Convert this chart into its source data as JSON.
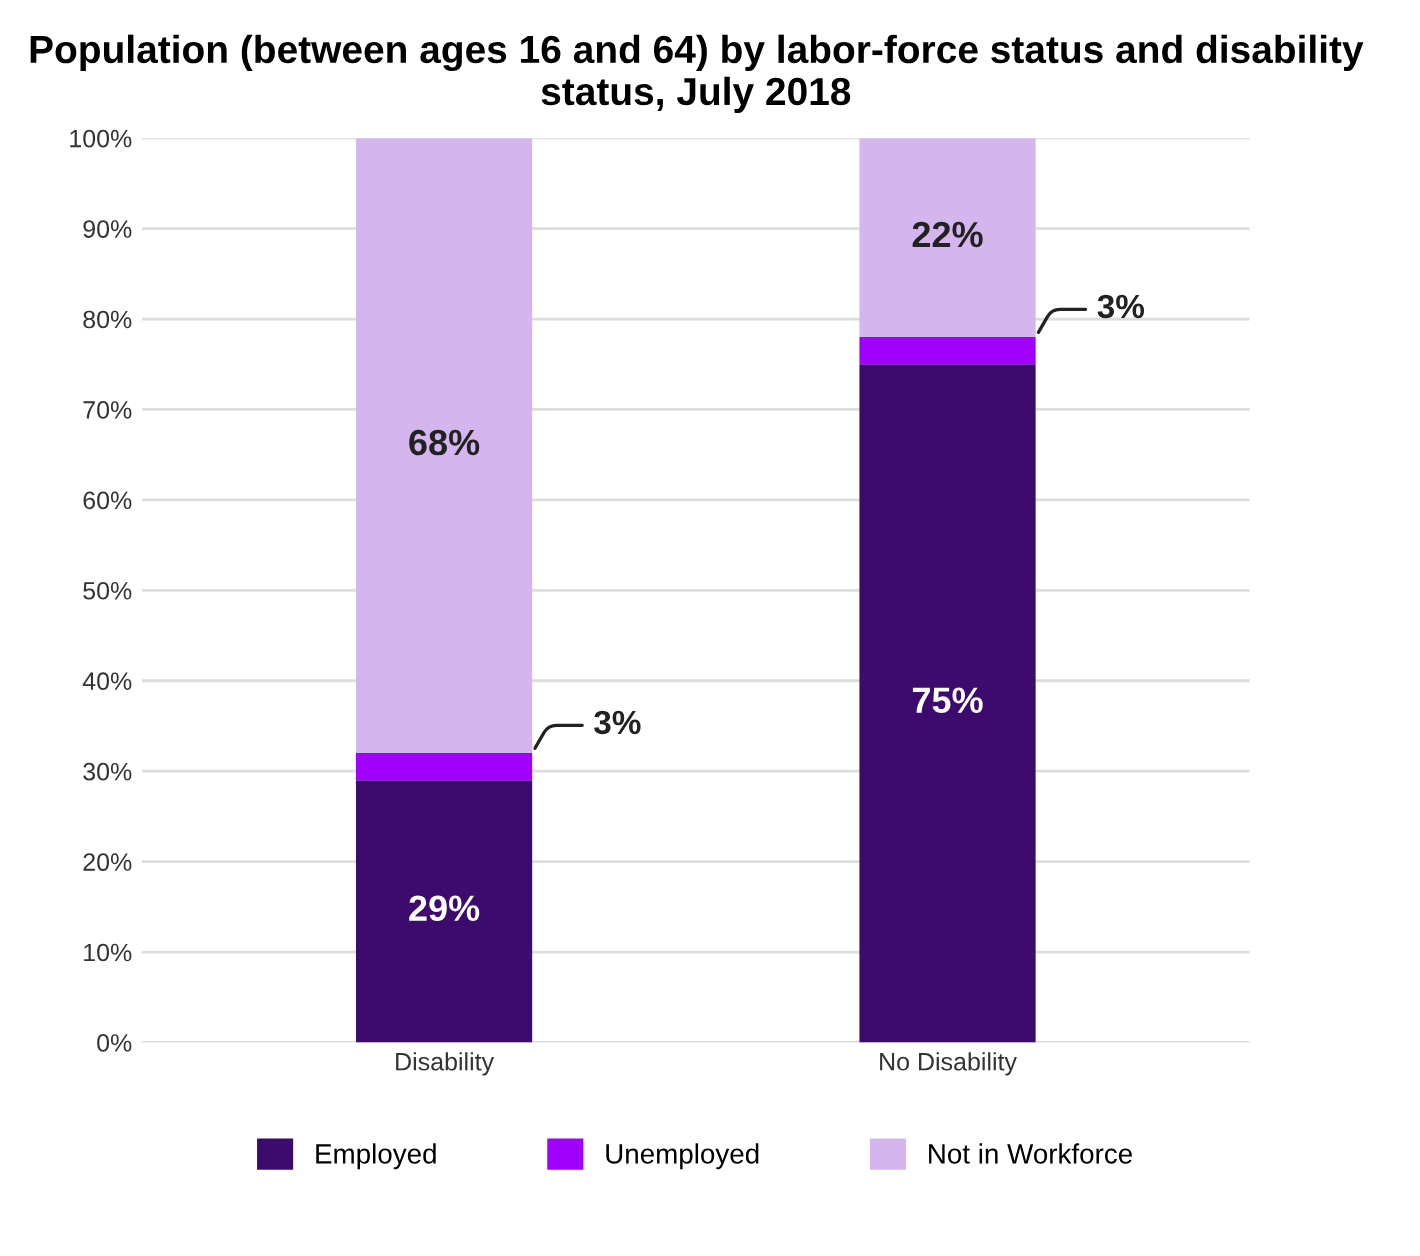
{
  "chart_data": {
    "type": "bar",
    "stacked": true,
    "title": "Population (between ages 16 and 64) by labor-force status and disability status, July 2018",
    "categories": [
      "Disability",
      "No Disability"
    ],
    "series": [
      {
        "name": "Employed",
        "color": "#3d0b6e",
        "values": [
          29,
          75
        ],
        "value_labels": [
          "29%",
          "75%"
        ]
      },
      {
        "name": "Unemployed",
        "color": "#a100ff",
        "values": [
          3,
          3
        ],
        "value_labels": [
          "3%",
          "3%"
        ]
      },
      {
        "name": "Not in Workforce",
        "color": "#d4b5ee",
        "values": [
          68,
          22
        ],
        "value_labels": [
          "68%",
          "22%"
        ]
      }
    ],
    "ylim": [
      0,
      100
    ],
    "yticks": [
      {
        "value": 0,
        "label": "0%"
      },
      {
        "value": 10,
        "label": "10%"
      },
      {
        "value": 20,
        "label": "20%"
      },
      {
        "value": 30,
        "label": "30%"
      },
      {
        "value": 40,
        "label": "40%"
      },
      {
        "value": 50,
        "label": "50%"
      },
      {
        "value": 60,
        "label": "60%"
      },
      {
        "value": 70,
        "label": "70%"
      },
      {
        "value": 80,
        "label": "80%"
      },
      {
        "value": 90,
        "label": "90%"
      },
      {
        "value": 100,
        "label": "100%"
      }
    ],
    "grid": "y",
    "legend": "bottom"
  }
}
